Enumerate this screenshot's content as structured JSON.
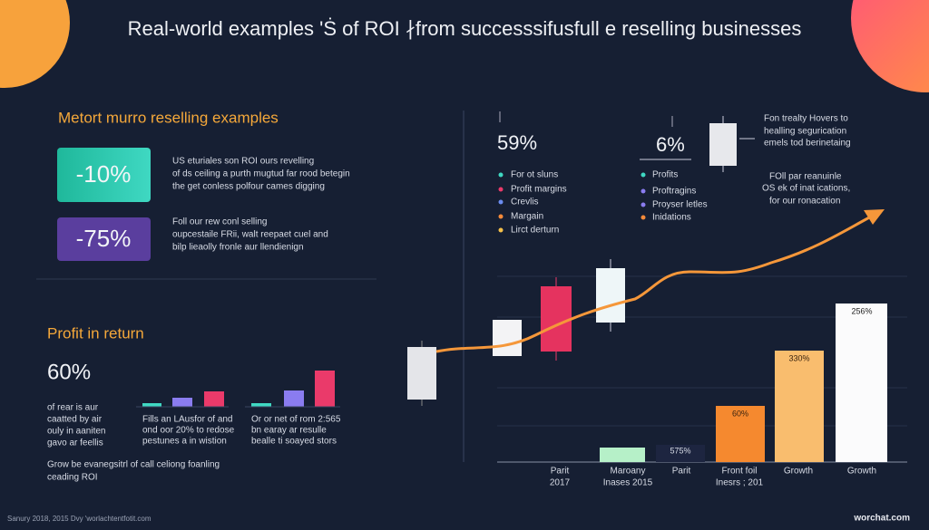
{
  "header": {
    "title": "Real-world examples 'Ṡ of ROI ∤from successsifusfull e reselling businesses"
  },
  "left": {
    "section_title": "Metort murro reselling examples",
    "cards": [
      {
        "value": "-10%",
        "lines": [
          "US eturiales son ROI ours revelling",
          "of ds ceiling a purth mugtud far rood betegin",
          "the get conless polfour cames digging"
        ]
      },
      {
        "value": "-75%",
        "lines": [
          "Foll our rew conl selling",
          "oupcestaile FRii, walt reepaet cuel and",
          "bilp lieaolly fronle aur llendienign"
        ]
      }
    ],
    "profit_title": "Profit in return",
    "profit_value": "60%",
    "profit_lines": [
      "of rear is aur",
      "caatted by air",
      "ouly in aaniten",
      "gavo ar feellis"
    ],
    "group_captions": [
      [
        "Fills an LAusfor of and",
        "ond oor 20% to redose",
        "pestunes a in wistion"
      ],
      [
        "Or or net of rom 2:565",
        "bn earay ar resulle",
        "bealle ti soayed stors"
      ]
    ],
    "note_lines": [
      "Grow be evanegsitrl of call celiong foanling",
      "ceading ROI"
    ]
  },
  "right": {
    "stat_a": "59%",
    "stat_b": "6%",
    "legend_a": [
      "For ot sluns",
      "Profit margins",
      "Crevlis",
      "Margain",
      "Lirct derturn"
    ],
    "legend_b": [
      "Profits",
      "Proftragins",
      "Proyser letles",
      "Inidations"
    ],
    "note_top": [
      "Fon trealty Hovers to",
      "healling segurication",
      "emels tod berinetaing"
    ],
    "note_mid": [
      "FOll par reanuinle",
      "OS ek of inat ications,",
      "for our ronacation"
    ],
    "bar_labels": [
      "575%",
      "60%",
      "330%",
      "256%"
    ],
    "x_labels": [
      [
        "Parit",
        "2017"
      ],
      [
        "Maroany",
        "Inases 2015"
      ],
      [
        "Parit"
      ],
      [
        "Front foil",
        "Inesrs ; 201"
      ],
      [
        "Growth"
      ],
      [
        "Growth"
      ]
    ]
  },
  "footer": {
    "left": "Sanury 2018, 2015 Dvy 'worlachtentfotit.com",
    "right": "worchat.com"
  }
}
